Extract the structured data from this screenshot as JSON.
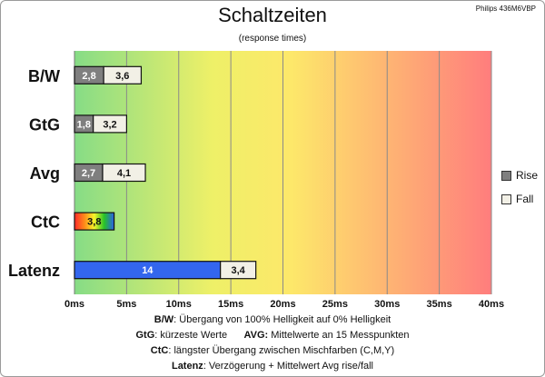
{
  "header": {
    "title": "Schaltzeiten",
    "subtitle": "(response times)",
    "model": "Philips 436M6VBP"
  },
  "legend": {
    "items": [
      {
        "label": "Rise",
        "color": "#7f7f7f"
      },
      {
        "label": "Fall",
        "color": "#f2f0e6"
      }
    ]
  },
  "notes": {
    "line1_key": "B/W",
    "line1_text": ":  Übergang von 100% Helligkeit auf 0% Helligkeit",
    "line2_key_a": "GtG",
    "line2_text_a": ": kürzeste  Werte",
    "line2_key_b": "AVG:",
    "line2_text_b": "Mittelwerte  an 15 Messpunkten",
    "line3_key": "CtC",
    "line3_text": ": längster Übergang  zwischen Mischfarben  (C,M,Y)",
    "line4_key": "Latenz",
    "line4_text": ": Verzögerung  + Mittelwert Avg rise/fall"
  },
  "colors": {
    "rise": "#7f7f7f",
    "fall": "#f2f0e6",
    "latency": "#3366ee",
    "gradient_stops": [
      "#7fd87f",
      "#f0f060",
      "#ff7f7f"
    ]
  },
  "chart_data": {
    "type": "bar",
    "orientation": "horizontal",
    "stacked": true,
    "categories": [
      "B/W",
      "GtG",
      "Avg",
      "CtC",
      "Latenz"
    ],
    "series": [
      {
        "name": "Rise",
        "values": [
          2.8,
          1.8,
          2.7,
          null,
          null
        ],
        "labels": [
          "2,8",
          "1,8",
          "2,7",
          "",
          ""
        ]
      },
      {
        "name": "Fall",
        "values": [
          3.6,
          3.2,
          4.1,
          null,
          3.4
        ],
        "labels": [
          "3,6",
          "3,2",
          "4,1",
          "",
          "3,4"
        ]
      },
      {
        "name": "",
        "values": [
          null,
          null,
          null,
          3.8,
          null
        ],
        "labels": [
          "",
          "",
          "",
          "3,8",
          ""
        ]
      },
      {
        "name": "",
        "values": [
          null,
          null,
          null,
          null,
          14
        ],
        "labels": [
          "",
          "",
          "",
          "",
          "14"
        ]
      }
    ],
    "xlim": [
      0,
      40
    ],
    "xticks": [
      "0ms",
      "5ms",
      "10ms",
      "15ms",
      "20ms",
      "25ms",
      "30ms",
      "35ms",
      "40ms"
    ],
    "xlabel": "",
    "ylabel": "",
    "grid": true,
    "legend_position": "right"
  }
}
